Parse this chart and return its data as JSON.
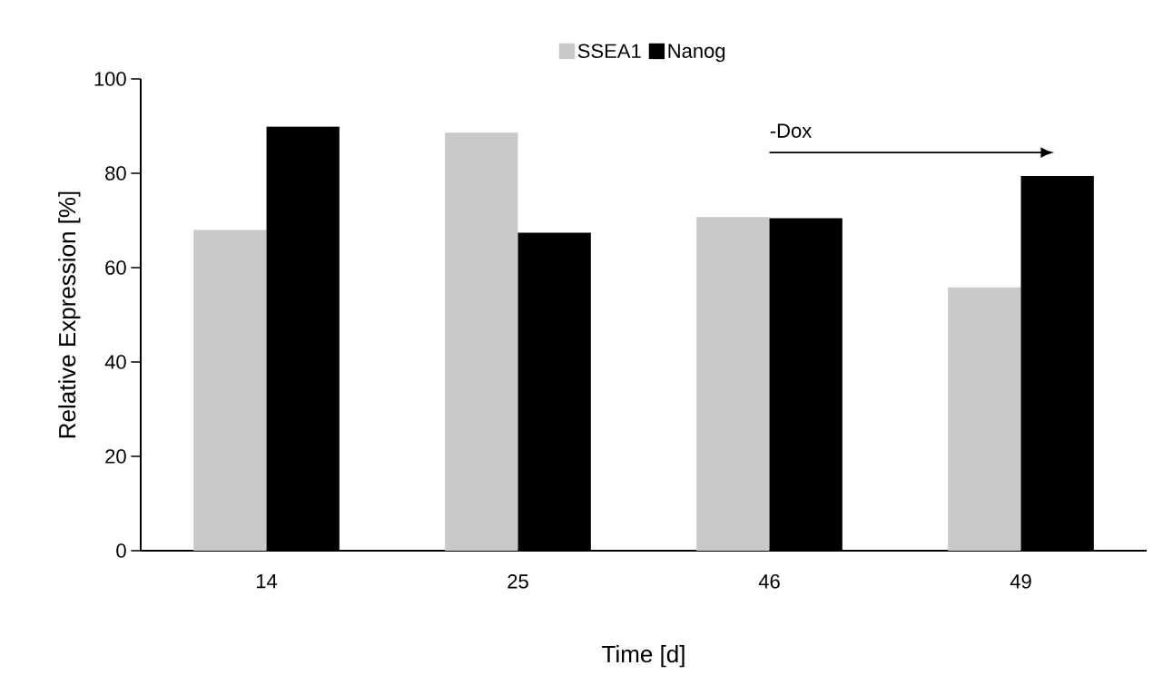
{
  "chart_data": {
    "type": "bar",
    "xlabel": "Time [d]",
    "ylabel": "Relative Expression [%]",
    "categories": [
      "14",
      "25",
      "46",
      "49"
    ],
    "series": [
      {
        "name": "SSEA1",
        "color": "#c9c9c9",
        "values": [
          68.0,
          88.6,
          70.7,
          55.8
        ]
      },
      {
        "name": "Nanog",
        "color": "#000000",
        "values": [
          89.9,
          67.4,
          70.5,
          79.4
        ]
      }
    ],
    "ylim": [
      0,
      100
    ],
    "yticks": [
      0,
      20,
      40,
      60,
      80,
      100
    ],
    "legend": "top",
    "annotations": [
      "-Dox"
    ]
  }
}
